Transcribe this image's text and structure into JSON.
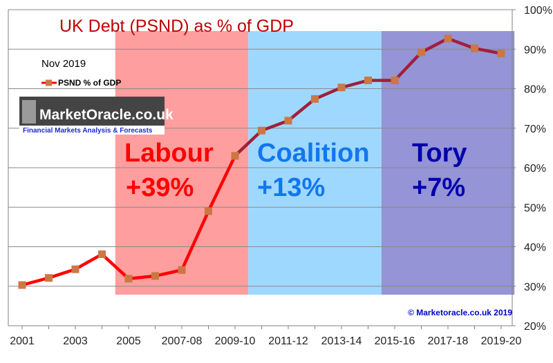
{
  "chart_data": {
    "type": "line",
    "title": "UK  Debt (PSND) as % of GDP",
    "subtitle": "Nov 2019",
    "legend": {
      "label": "PSND % of GDP",
      "placement": "top-left"
    },
    "x_tick_labels": [
      "2001",
      "2003",
      "2005",
      "2007-08",
      "2009-10",
      "2011-12",
      "2013-14",
      "2015-16",
      "2017-18",
      "2019-20"
    ],
    "y_tick_labels": [
      "20%",
      "30%",
      "40%",
      "50%",
      "60%",
      "70%",
      "80%",
      "90%",
      "100%"
    ],
    "ylim": [
      20,
      100
    ],
    "y_axis_position": "right",
    "grid": true,
    "series": [
      {
        "name": "PSND % of GDP",
        "x": [
          "2001",
          "2002",
          "2003",
          "2004",
          "2005",
          "2006",
          "2007-08",
          "2008-09",
          "2009-10",
          "2010-11",
          "2011-12",
          "2012-13",
          "2013-14",
          "2014-15",
          "2015-16",
          "2016-17",
          "2017-18",
          "2018-19",
          "2019-20"
        ],
        "values": [
          30.3,
          32.1,
          34.3,
          38.1,
          31.9,
          32.6,
          34.1,
          49.0,
          63.0,
          69.4,
          71.9,
          77.4,
          80.3,
          82.1,
          82.1,
          89.2,
          92.7,
          90.2,
          88.9
        ]
      }
    ],
    "eras": [
      {
        "name": "Labour",
        "change": "+39%",
        "band_color": "#ff9e9e",
        "text_color": "#ff0000",
        "line_color": "#ff0000"
      },
      {
        "name": "Coalition",
        "change": "+13%",
        "band_color": "#9fd8ff",
        "text_color": "#1177ee",
        "line_color": "#a0203a"
      },
      {
        "name": "Tory",
        "change": "+7%",
        "band_color": "#9494d6",
        "text_color": "#0000aa",
        "line_color": "#a0203a"
      }
    ],
    "marker_color": "#cc7744",
    "copyright": "© Marketoracle.co.uk 2019"
  },
  "logo": {
    "main": "MarketOracle.co.uk",
    "tagline": "Financial Markets Analysis & Forecasts"
  }
}
